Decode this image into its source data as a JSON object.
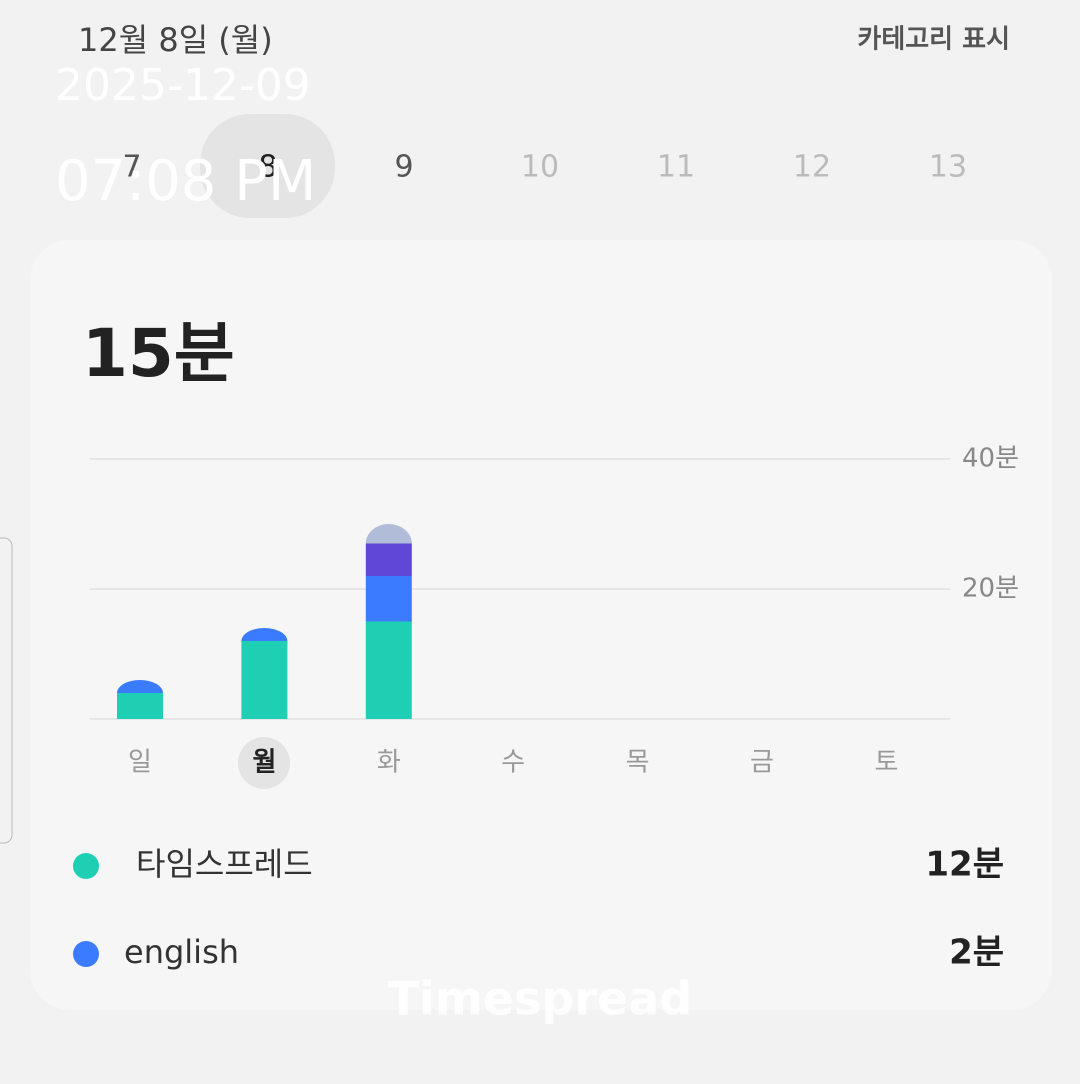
{
  "header": {
    "date_label": "12월 8일 (월)",
    "category_toggle": "카테고리 표시"
  },
  "overlay": {
    "date": "2025-12-09",
    "time": "07:08 PM"
  },
  "week_days": [
    "7",
    "8",
    "9",
    "10",
    "11",
    "12",
    "13"
  ],
  "total": "15분",
  "chart_data": {
    "type": "stacked_bar",
    "categories": [
      "일",
      "월",
      "화",
      "수",
      "목",
      "금",
      "토"
    ],
    "ylim": [
      0,
      40
    ],
    "yticks": [
      {
        "value": 20,
        "label": "20분"
      },
      {
        "value": 40,
        "label": "40분"
      }
    ],
    "grid": true,
    "series": [
      {
        "name": "타임스프레드",
        "color": "#1fcfb4",
        "values": [
          4,
          12,
          15,
          null,
          null,
          null,
          null
        ]
      },
      {
        "name": "english",
        "color": "#3b7bff",
        "values": [
          2,
          2,
          7,
          null,
          null,
          null,
          null
        ]
      },
      {
        "color": "#6047d6",
        "values": [
          null,
          null,
          5,
          null,
          null,
          null,
          null
        ]
      },
      {
        "color": "#b0bcd8",
        "values": [
          null,
          null,
          3,
          null,
          null,
          null,
          null
        ]
      }
    ]
  },
  "legend_values": [
    "12분",
    "2분"
  ],
  "watermark": "Timespread"
}
